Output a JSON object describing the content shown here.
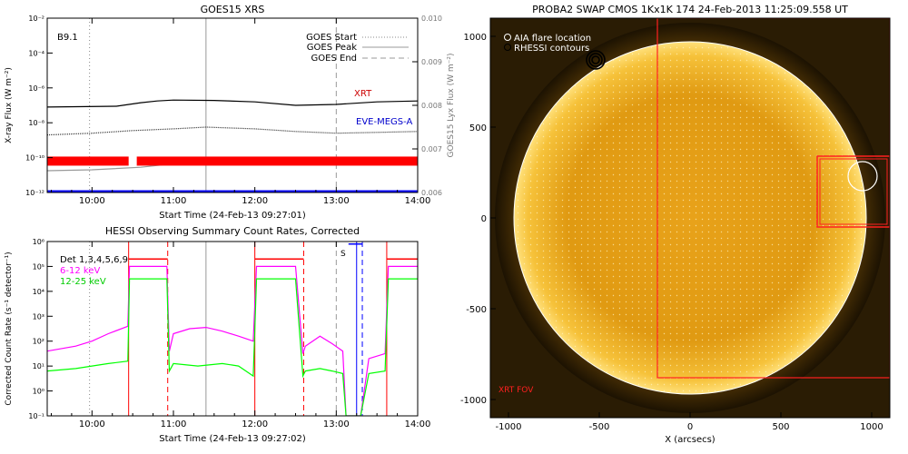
{
  "chart_data": [
    {
      "id": "goes",
      "type": "line",
      "title": "GOES15 XRS",
      "xlabel": "Start Time (24-Feb-13 09:27:01)",
      "ylabel": "X-ray Flux (W m⁻²)",
      "ylabel_right": "GOES15 Lyx Flux (W m⁻²)",
      "x_range_hours": [
        9.45,
        14.0
      ],
      "x_ticks": [
        {
          "h": 10,
          "label": "10:00"
        },
        {
          "h": 11,
          "label": "11:00"
        },
        {
          "h": 12,
          "label": "12:00"
        },
        {
          "h": 13,
          "label": "13:00"
        },
        {
          "h": 14,
          "label": "14:00"
        }
      ],
      "y_scale": "log",
      "ylim_exp": [
        -12,
        -2
      ],
      "y_ticks": [
        {
          "e": -2,
          "label": "10⁻²"
        },
        {
          "e": -4,
          "label": "10⁻⁴"
        },
        {
          "e": -6,
          "label": "10⁻⁶"
        },
        {
          "e": -8,
          "label": "10⁻⁸"
        },
        {
          "e": -10,
          "label": "10⁻¹⁰"
        },
        {
          "e": -12,
          "label": "10⁻¹²"
        }
      ],
      "y2lim": [
        0.006,
        0.01
      ],
      "y2_ticks": [
        {
          "v": 0.006,
          "label": "0.006"
        },
        {
          "v": 0.007,
          "label": "0.007"
        },
        {
          "v": 0.008,
          "label": "0.008"
        },
        {
          "v": 0.009,
          "label": "0.009"
        },
        {
          "v": 0.01,
          "label": "0.010"
        }
      ],
      "annotation": "B9.1",
      "vlines": [
        {
          "h": 9.97,
          "style": "dotted",
          "color": "#888888"
        },
        {
          "h": 11.4,
          "style": "solid",
          "color": "#999999"
        },
        {
          "h": 13.0,
          "style": "dashed",
          "color": "#999999"
        }
      ],
      "legend": [
        "GOES Start",
        "GOES Peak",
        "GOES End"
      ],
      "series": [
        {
          "name": "XRT",
          "color": "#000000",
          "x": [
            9.45,
            10.3,
            10.6,
            10.8,
            11.0,
            11.5,
            12.0,
            12.5,
            13.0,
            13.5,
            14.0
          ],
          "log10": [
            -7.1,
            -7.05,
            -6.85,
            -6.75,
            -6.7,
            -6.72,
            -6.8,
            -7.0,
            -6.95,
            -6.8,
            -6.75
          ]
        },
        {
          "name": "",
          "color": "#333333",
          "dotted": true,
          "x": [
            9.45,
            10.0,
            10.5,
            11.0,
            11.4,
            12.0,
            12.5,
            13.0,
            13.5,
            14.0
          ],
          "log10": [
            -8.7,
            -8.6,
            -8.45,
            -8.35,
            -8.25,
            -8.35,
            -8.5,
            -8.6,
            -8.55,
            -8.5
          ]
        },
        {
          "name": "EVE-MEGS-A",
          "color": "#0000cc",
          "x": [],
          "log10": []
        },
        {
          "name": "",
          "color": "#999999",
          "x": [
            9.45,
            10.0,
            10.6,
            11.0,
            11.5,
            12.0,
            12.5,
            13.0,
            13.5,
            14.0
          ],
          "log10": [
            -10.75,
            -10.7,
            -10.55,
            -10.35,
            -10.3,
            -10.28,
            -10.3,
            -10.3,
            -10.2,
            -10.1
          ]
        },
        {
          "name": "",
          "color": "#ff0000",
          "type": "band",
          "log10": -10.2,
          "segments": [
            [
              9.45,
              10.45
            ],
            [
              10.55,
              14.0
            ]
          ]
        },
        {
          "name": "",
          "color": "#0000ff",
          "type": "flat",
          "log10": -12.0,
          "segments": [
            [
              9.45,
              14.0
            ]
          ]
        }
      ]
    },
    {
      "id": "hessi",
      "type": "line",
      "title": "HESSI Observing Summary Count Rates, Corrected",
      "xlabel": "Start Time (24-Feb-13 09:27:02)",
      "ylabel": "Corrected Count Rate (s⁻¹ detector⁻¹)",
      "x_range_hours": [
        9.45,
        14.0
      ],
      "x_ticks": [
        {
          "h": 10,
          "label": "10:00"
        },
        {
          "h": 11,
          "label": "11:00"
        },
        {
          "h": 12,
          "label": "12:00"
        },
        {
          "h": 13,
          "label": "13:00"
        },
        {
          "h": 14,
          "label": "14:00"
        }
      ],
      "y_scale": "log",
      "ylim_exp": [
        -1,
        6
      ],
      "y_ticks": [
        {
          "e": 6,
          "label": "10⁶"
        },
        {
          "e": 5,
          "label": "10⁵"
        },
        {
          "e": 4,
          "label": "10⁴"
        },
        {
          "e": 3,
          "label": "10³"
        },
        {
          "e": 2,
          "label": "10²"
        },
        {
          "e": 1,
          "label": "10¹"
        },
        {
          "e": 0,
          "label": "10⁰"
        },
        {
          "e": -1,
          "label": "10⁻¹"
        }
      ],
      "legend_text": [
        "Det 1,3,4,5,6,9",
        "6-12 keV",
        "12-25 keV"
      ],
      "s_label": "S",
      "vlines": [
        {
          "h": 9.97,
          "style": "dotted",
          "color": "#888888"
        },
        {
          "h": 11.4,
          "style": "solid",
          "color": "#999999"
        },
        {
          "h": 13.0,
          "style": "dashed",
          "color": "#999999"
        },
        {
          "h": 10.45,
          "style": "solid",
          "color": "#ff0000"
        },
        {
          "h": 10.93,
          "style": "dashed",
          "color": "#ff0000"
        },
        {
          "h": 12.0,
          "style": "solid",
          "color": "#ff0000"
        },
        {
          "h": 12.6,
          "style": "dashed",
          "color": "#ff0000"
        },
        {
          "h": 13.62,
          "style": "solid",
          "color": "#ff0000"
        },
        {
          "h": 13.25,
          "style": "solid",
          "color": "#0000ff"
        },
        {
          "h": 13.32,
          "style": "dashed",
          "color": "#0000ff"
        }
      ],
      "series": [
        {
          "name": "6-12 keV",
          "color": "#ff00ff",
          "x": [
            9.45,
            9.8,
            10.0,
            10.2,
            10.44,
            10.46,
            10.92,
            10.95,
            11.0,
            11.2,
            11.4,
            11.6,
            11.8,
            11.98,
            12.02,
            12.5,
            12.59,
            12.62,
            12.8,
            12.95,
            13.08,
            13.12,
            13.3,
            13.4,
            13.6,
            13.64,
            14.0
          ],
          "log10": [
            1.6,
            1.8,
            2.0,
            2.3,
            2.6,
            5.0,
            5.0,
            1.6,
            2.3,
            2.5,
            2.55,
            2.4,
            2.2,
            2.0,
            5.0,
            5.0,
            1.5,
            1.8,
            2.2,
            1.9,
            1.6,
            -1.0,
            -1.0,
            1.3,
            1.5,
            5.0,
            5.0
          ]
        },
        {
          "name": "12-25 keV",
          "color": "#00ff00",
          "x": [
            9.45,
            9.8,
            10.0,
            10.2,
            10.44,
            10.46,
            10.92,
            10.95,
            11.0,
            11.3,
            11.6,
            11.8,
            11.98,
            12.02,
            12.5,
            12.59,
            12.62,
            12.8,
            12.95,
            13.08,
            13.12,
            13.3,
            13.4,
            13.6,
            13.64,
            14.0
          ],
          "log10": [
            0.8,
            0.9,
            1.0,
            1.1,
            1.2,
            4.5,
            4.5,
            0.8,
            1.1,
            1.0,
            1.1,
            1.0,
            0.6,
            4.5,
            4.5,
            0.6,
            0.8,
            0.9,
            0.8,
            0.7,
            -1.0,
            -1.0,
            0.7,
            0.8,
            4.5,
            4.5
          ]
        },
        {
          "name": "",
          "color": "#ff0000",
          "type": "steps",
          "segments": [
            [
              10.45,
              10.93,
              5.3
            ],
            [
              12.0,
              12.6,
              5.3
            ],
            [
              13.62,
              14.0,
              5.3
            ]
          ]
        },
        {
          "name": "",
          "color": "#0000ff",
          "type": "steps",
          "segments": [
            [
              13.15,
              13.32,
              5.9
            ]
          ]
        }
      ]
    },
    {
      "id": "swap",
      "type": "image",
      "title": "PROBA2 SWAP CMOS 1Kx1K 174 24-Feb-2013 11:25:09.558 UT",
      "xlabel": "X (arcsecs)",
      "xlim": [
        -1100,
        1100
      ],
      "ylim": [
        -1100,
        1100
      ],
      "x_ticks": [
        {
          "v": -1000,
          "label": "-1000"
        },
        {
          "v": -500,
          "label": "-500"
        },
        {
          "v": 0,
          "label": "0"
        },
        {
          "v": 500,
          "label": "500"
        },
        {
          "v": 1000,
          "label": "1000"
        }
      ],
      "y_ticks": [
        {
          "v": 1000,
          "label": "1000"
        },
        {
          "v": 500,
          "label": "500"
        },
        {
          "v": 0,
          "label": "0"
        },
        {
          "v": -500,
          "label": "-500"
        },
        {
          "v": -1000,
          "label": "-1000"
        }
      ],
      "legend": [
        "AIA flare location",
        "RHESSI contours"
      ],
      "xrt_fov_label": "XRT FOV",
      "xrt_fov": {
        "x": [
          -180,
          1100
        ],
        "y": [
          -880,
          1100
        ]
      },
      "zoom_box": {
        "x": [
          700,
          1100
        ],
        "y": [
          -50,
          340
        ]
      },
      "aia_circle": {
        "x": 950,
        "y": 230,
        "r": 80
      },
      "rhessi_contour": {
        "x": -520,
        "y": 870
      },
      "sun_radius": 970
    }
  ]
}
